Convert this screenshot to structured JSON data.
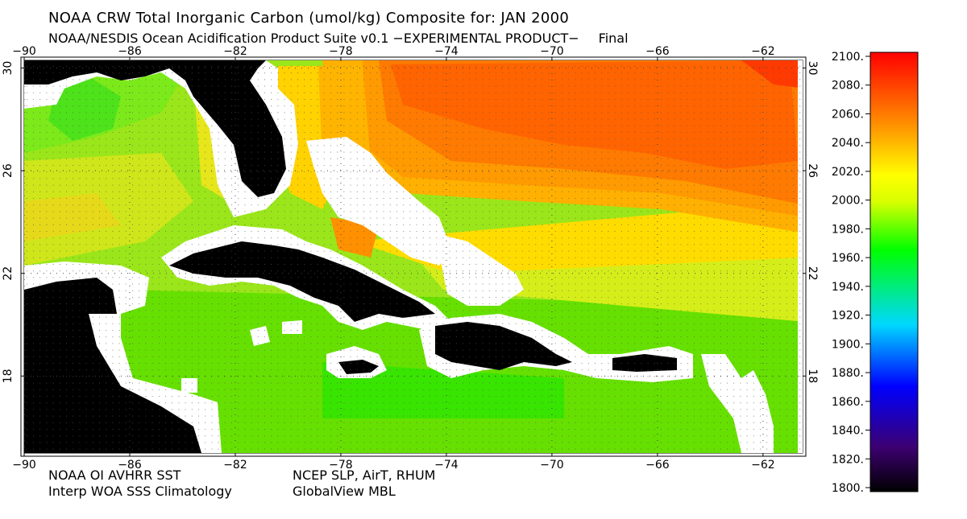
{
  "title": "NOAA CRW Total Inorganic Carbon (umol/kg) Composite for: JAN 2000",
  "subtitle": {
    "left": "NOAA/NESDIS Ocean Acidification Product Suite  v0.1 −EXPERIMENTAL PRODUCT−",
    "right": "Final"
  },
  "credits": {
    "left_1": "NOAA OI AVHRR SST",
    "left_2": "Interp WOA SSS Climatology",
    "right_1": "NCEP SLP, AirT, RHUM",
    "right_2": "GlobalView MBL"
  },
  "map": {
    "lon_range": [
      -90,
      -60.5
    ],
    "lat_range": [
      15,
      30.3
    ],
    "lon_ticks": [
      "−90",
      "−86",
      "−82",
      "−78",
      "−74",
      "−70",
      "−66",
      "−62"
    ],
    "lat_ticks": [
      "30",
      "26",
      "22",
      "18"
    ],
    "land_color": "#000000",
    "nodata_color": "#ffffff"
  },
  "colorbar": {
    "labels": [
      "2100.",
      "2080.",
      "2060.",
      "2040.",
      "2020.",
      "2000.",
      "1980.",
      "1960.",
      "1940.",
      "1920.",
      "1900.",
      "1880.",
      "1860.",
      "1840.",
      "1820.",
      "1800."
    ],
    "range": [
      1800,
      2100
    ],
    "colors": [
      "#000000",
      "#4b0082",
      "#0000ff",
      "#00c8ff",
      "#00ff00",
      "#ffff00",
      "#ff9600",
      "#ff0000"
    ]
  }
}
